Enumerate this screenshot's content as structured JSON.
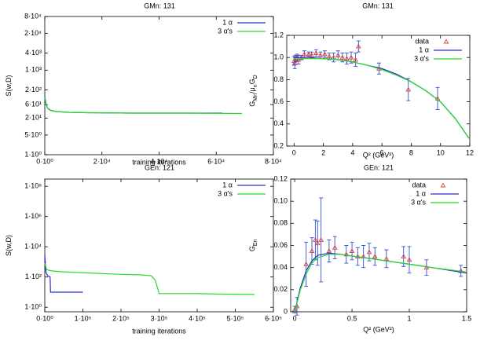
{
  "chart_data": [
    {
      "type": "line",
      "title": "GMn: 131",
      "x_label": "training iterations",
      "y_label": [
        "S(w,D)"
      ],
      "log_y": true,
      "legend": "top-right",
      "xlim": [
        0,
        80000
      ],
      "xticks": [
        {
          "value": 0,
          "label": "0·10⁰"
        },
        {
          "value": 20000,
          "label": "2·10⁴"
        },
        {
          "value": 40000,
          "label": "4·10⁴"
        },
        {
          "value": 60000,
          "label": "6·10⁴"
        },
        {
          "value": 80000,
          "label": "8·10⁴"
        }
      ],
      "ylim": [
        1,
        80000
      ],
      "yticks": [
        {
          "value": 1,
          "label": "1·10⁰"
        },
        {
          "value": 5,
          "label": "5·10⁰"
        },
        {
          "value": 20,
          "label": "2·10¹"
        },
        {
          "value": 60,
          "label": "6·10¹"
        },
        {
          "value": 200,
          "label": "2·10²"
        },
        {
          "value": 1000,
          "label": "1·10³"
        },
        {
          "value": 4000,
          "label": "4·10³"
        },
        {
          "value": 20000,
          "label": "2·10⁴"
        },
        {
          "value": 80000,
          "label": "8·10⁴"
        }
      ],
      "series": [
        {
          "name": "1 α",
          "color": "#2a2ad8",
          "x": [
            0,
            500,
            1000,
            2000,
            4000,
            8000,
            15000,
            30000,
            45000,
            62000
          ],
          "values": [
            120,
            60,
            45,
            38,
            34,
            32,
            31,
            30,
            30,
            30
          ]
        },
        {
          "name": "3 α's",
          "color": "#22dd22",
          "x": [
            0,
            500,
            1000,
            2000,
            4000,
            8000,
            15000,
            30000,
            50000,
            69000
          ],
          "values": [
            110,
            58,
            44,
            37,
            34,
            32,
            31,
            30,
            30,
            29
          ]
        }
      ]
    },
    {
      "type": "errorbar",
      "title": "GMn: 131",
      "x_label": "Q² (GeV²)",
      "y_label": [
        "G",
        "Mn",
        "/μ",
        "n",
        "G",
        "D"
      ],
      "legend": "top-right",
      "xlim": [
        -0.5,
        12
      ],
      "xticks": [
        0,
        2,
        4,
        6,
        8,
        10,
        12
      ],
      "ylim": [
        0.2,
        1.2
      ],
      "yticks": [
        0.2,
        0.4,
        0.6,
        0.8,
        {
          "value": 1,
          "label": "1.0"
        },
        1.2
      ],
      "series": [
        {
          "name": "data",
          "color": "#e04040",
          "error_color": "#3050d0",
          "x": [
            0.0,
            0.05,
            0.1,
            0.2,
            0.3,
            0.5,
            0.7,
            1.0,
            1.2,
            1.5,
            1.8,
            2.1,
            2.4,
            2.7,
            3.0,
            3.3,
            3.6,
            3.9,
            4.2,
            4.4,
            5.8,
            7.8,
            9.8
          ],
          "values": [
            0.97,
            0.95,
            0.99,
            1.0,
            0.98,
            1.0,
            1.03,
            1.03,
            1.02,
            1.04,
            1.02,
            1.03,
            1.01,
            1.0,
            1.02,
            1.0,
            0.99,
            1.0,
            0.98,
            1.1,
            0.9,
            0.71,
            0.63
          ],
          "errors": [
            0.04,
            0.05,
            0.03,
            0.03,
            0.04,
            0.02,
            0.03,
            0.02,
            0.03,
            0.03,
            0.03,
            0.03,
            0.03,
            0.04,
            0.04,
            0.04,
            0.05,
            0.05,
            0.06,
            0.05,
            0.05,
            0.1,
            0.1
          ]
        },
        {
          "name": "1 α",
          "color": "#2a2ad8",
          "x": [
            0,
            1,
            2,
            3,
            4,
            5,
            6,
            7,
            8,
            9,
            10,
            11,
            12
          ],
          "values": [
            1.0,
            1.0,
            0.99,
            0.98,
            0.96,
            0.93,
            0.9,
            0.85,
            0.78,
            0.7,
            0.6,
            0.45,
            0.26
          ]
        },
        {
          "name": "3 α's",
          "color": "#22dd22",
          "x": [
            0,
            1,
            2,
            3,
            4,
            5,
            6,
            7,
            8,
            9,
            10,
            11,
            12
          ],
          "values": [
            0.99,
            0.99,
            0.99,
            0.98,
            0.96,
            0.93,
            0.89,
            0.84,
            0.78,
            0.7,
            0.6,
            0.45,
            0.26
          ]
        }
      ]
    },
    {
      "type": "line",
      "title": "GEn: 121",
      "x_label": "training iterations",
      "y_label": [
        "S(w,D)"
      ],
      "log_y": true,
      "legend": "top-right",
      "xlim": [
        0,
        600000
      ],
      "xticks": [
        {
          "value": 0,
          "label": "0·10⁰"
        },
        {
          "value": 100000,
          "label": "1·10⁵"
        },
        {
          "value": 200000,
          "label": "2·10⁵"
        },
        {
          "value": 300000,
          "label": "3·10⁵"
        },
        {
          "value": 400000,
          "label": "4·10⁵"
        },
        {
          "value": 500000,
          "label": "5·10⁵"
        },
        {
          "value": 600000,
          "label": "6·10⁵"
        }
      ],
      "ylim": [
        0.5,
        300000000
      ],
      "yticks": [
        {
          "value": 1,
          "label": "1·10⁰"
        },
        {
          "value": 100,
          "label": "1·10²"
        },
        {
          "value": 10000,
          "label": "1·10⁴"
        },
        {
          "value": 1000000,
          "label": "1·10⁶"
        },
        {
          "value": 100000000,
          "label": "1·10⁸"
        }
      ],
      "series": [
        {
          "name": "1 α",
          "color": "#2a2ad8",
          "x": [
            0,
            3000,
            8000,
            14000,
            15000,
            100000
          ],
          "values": [
            3000,
            200,
            120,
            100,
            10,
            10
          ]
        },
        {
          "name": "3 α's",
          "color": "#22dd22",
          "x": [
            0,
            5000,
            20000,
            50000,
            100000,
            150000,
            200000,
            250000,
            280000,
            290000,
            300000,
            350000,
            400000,
            450000,
            500000,
            550000
          ],
          "values": [
            800,
            300,
            250,
            220,
            190,
            170,
            150,
            140,
            120,
            60,
            8,
            8,
            8,
            7.5,
            7,
            7
          ]
        }
      ]
    },
    {
      "type": "errorbar",
      "title": "GEn: 121",
      "x_label": "Q² (GeV²)",
      "y_label": [
        "G",
        "En"
      ],
      "legend": "top-right",
      "xlim": [
        -0.035,
        1.5
      ],
      "xticks": [
        0,
        0.5,
        1,
        1.5
      ],
      "ylim": [
        0,
        0.12
      ],
      "yticks": [
        0,
        0.02,
        0.04,
        0.06,
        0.08,
        {
          "value": 0.1,
          "label": "0.10"
        },
        0.12
      ],
      "series": [
        {
          "name": "data",
          "color": "#e04040",
          "error_color": "#3050d0",
          "x": [
            0.0,
            0.02,
            0.1,
            0.15,
            0.18,
            0.2,
            0.23,
            0.3,
            0.35,
            0.45,
            0.5,
            0.55,
            0.6,
            0.65,
            0.7,
            0.8,
            0.95,
            1.0,
            1.15,
            1.45
          ],
          "values": [
            0.002,
            0.005,
            0.043,
            0.055,
            0.065,
            0.062,
            0.065,
            0.055,
            0.058,
            0.052,
            0.055,
            0.05,
            0.05,
            0.054,
            0.05,
            0.048,
            0.05,
            0.047,
            0.04,
            0.037
          ],
          "errors": [
            0.003,
            0.008,
            0.02,
            0.012,
            0.018,
            0.02,
            0.038,
            0.01,
            0.01,
            0.008,
            0.008,
            0.008,
            0.01,
            0.008,
            0.008,
            0.008,
            0.009,
            0.012,
            0.007,
            0.005
          ]
        },
        {
          "name": "1 α",
          "color": "#2a2ad8",
          "x": [
            0,
            0.05,
            0.1,
            0.15,
            0.2,
            0.3,
            0.4,
            0.6,
            0.8,
            1.0,
            1.2,
            1.5
          ],
          "values": [
            0,
            0.022,
            0.037,
            0.046,
            0.051,
            0.053,
            0.052,
            0.049,
            0.046,
            0.043,
            0.04,
            0.035
          ]
        },
        {
          "name": "3 α's",
          "color": "#22dd22",
          "x": [
            0,
            0.05,
            0.1,
            0.15,
            0.2,
            0.3,
            0.4,
            0.6,
            0.8,
            1.0,
            1.2,
            1.5
          ],
          "values": [
            0,
            0.02,
            0.034,
            0.044,
            0.049,
            0.052,
            0.052,
            0.049,
            0.046,
            0.043,
            0.04,
            0.036
          ]
        }
      ]
    }
  ]
}
